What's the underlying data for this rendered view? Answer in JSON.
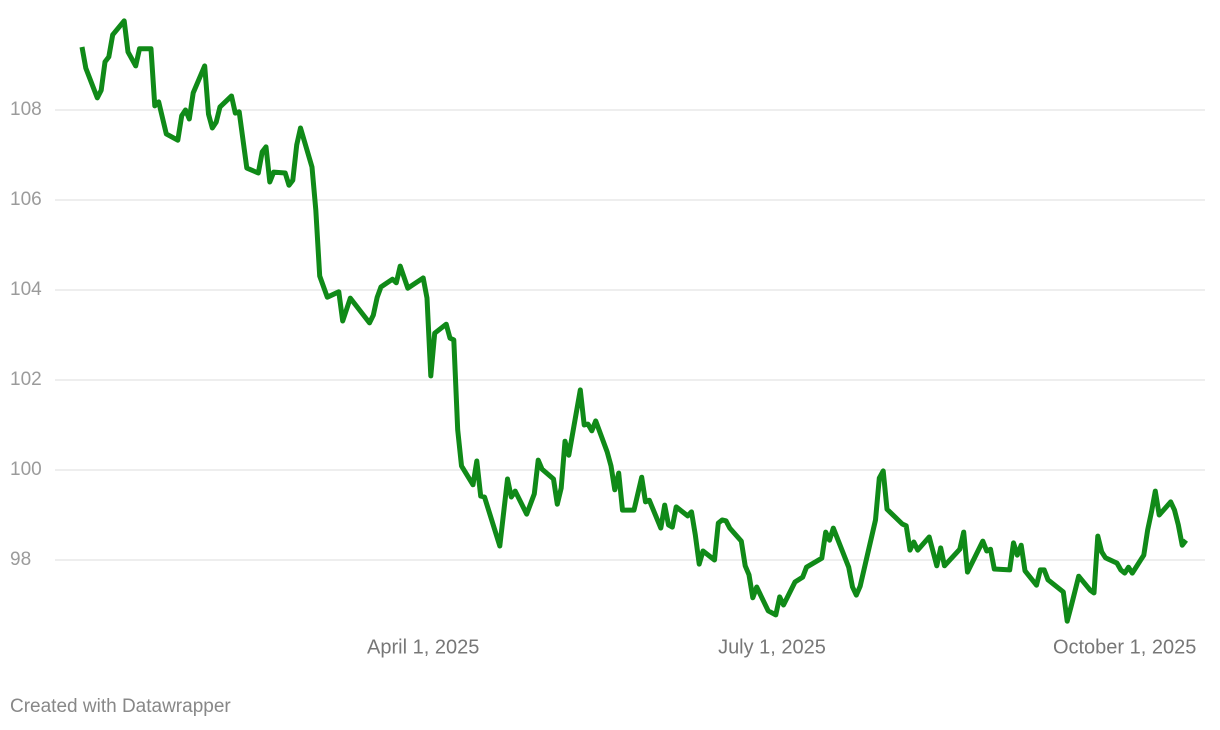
{
  "chart_data": {
    "type": "line",
    "color": "#108a18",
    "grid": true,
    "x": [
      "2025-01-02",
      "2025-01-03",
      "2025-01-06",
      "2025-01-07",
      "2025-01-08",
      "2025-01-09",
      "2025-01-10",
      "2025-01-13",
      "2025-01-14",
      "2025-01-16",
      "2025-01-17",
      "2025-01-20",
      "2025-01-21",
      "2025-01-22",
      "2025-01-24",
      "2025-01-27",
      "2025-01-28",
      "2025-01-29",
      "2025-01-30",
      "2025-01-31",
      "2025-02-03",
      "2025-02-04",
      "2025-02-05",
      "2025-02-06",
      "2025-02-07",
      "2025-02-10",
      "2025-02-11",
      "2025-02-12",
      "2025-02-14",
      "2025-02-17",
      "2025-02-18",
      "2025-02-19",
      "2025-02-20",
      "2025-02-21",
      "2025-02-24",
      "2025-02-25",
      "2025-02-26",
      "2025-02-27",
      "2025-02-28",
      "2025-03-03",
      "2025-03-04",
      "2025-03-05",
      "2025-03-07",
      "2025-03-10",
      "2025-03-11",
      "2025-03-13",
      "2025-03-18",
      "2025-03-19",
      "2025-03-20",
      "2025-03-21",
      "2025-03-24",
      "2025-03-25",
      "2025-03-26",
      "2025-03-28",
      "2025-04-01",
      "2025-04-02",
      "2025-04-03",
      "2025-04-04",
      "2025-04-07",
      "2025-04-08",
      "2025-04-09",
      "2025-04-10",
      "2025-04-11",
      "2025-04-14",
      "2025-04-15",
      "2025-04-16",
      "2025-04-17",
      "2025-04-21",
      "2025-04-23",
      "2025-04-24",
      "2025-04-25",
      "2025-04-28",
      "2025-04-30",
      "2025-05-01",
      "2025-05-02",
      "2025-05-05",
      "2025-05-06",
      "2025-05-07",
      "2025-05-08",
      "2025-05-09",
      "2025-05-12",
      "2025-05-13",
      "2025-05-14",
      "2025-05-15",
      "2025-05-16",
      "2025-05-19",
      "2025-05-20",
      "2025-05-21",
      "2025-05-22",
      "2025-05-23",
      "2025-05-26",
      "2025-05-28",
      "2025-05-29",
      "2025-05-30",
      "2025-06-02",
      "2025-06-03",
      "2025-06-04",
      "2025-06-05",
      "2025-06-06",
      "2025-06-09",
      "2025-06-10",
      "2025-06-11",
      "2025-06-12",
      "2025-06-13",
      "2025-06-16",
      "2025-06-17",
      "2025-06-18",
      "2025-06-19",
      "2025-06-20",
      "2025-06-23",
      "2025-06-24",
      "2025-06-25",
      "2025-06-26",
      "2025-06-27",
      "2025-06-30",
      "2025-07-02",
      "2025-07-03",
      "2025-07-04",
      "2025-07-07",
      "2025-07-09",
      "2025-07-10",
      "2025-07-14",
      "2025-07-15",
      "2025-07-16",
      "2025-07-17",
      "2025-07-21",
      "2025-07-22",
      "2025-07-23",
      "2025-07-24",
      "2025-07-28",
      "2025-07-29",
      "2025-07-30",
      "2025-07-31",
      "2025-08-04",
      "2025-08-05",
      "2025-08-06",
      "2025-08-07",
      "2025-08-08",
      "2025-08-11",
      "2025-08-13",
      "2025-08-14",
      "2025-08-15",
      "2025-08-19",
      "2025-08-20",
      "2025-08-21",
      "2025-08-25",
      "2025-08-26",
      "2025-08-27",
      "2025-08-28",
      "2025-09-01",
      "2025-09-02",
      "2025-09-03",
      "2025-09-04",
      "2025-09-05",
      "2025-09-08",
      "2025-09-09",
      "2025-09-10",
      "2025-09-11",
      "2025-09-15",
      "2025-09-16",
      "2025-09-17",
      "2025-09-18",
      "2025-09-19",
      "2025-09-22",
      "2025-09-23",
      "2025-09-24",
      "2025-09-25",
      "2025-09-26",
      "2025-09-29",
      "2025-09-30",
      "2025-10-01",
      "2025-10-02",
      "2025-10-03",
      "2025-10-06",
      "2025-10-07",
      "2025-10-08",
      "2025-10-09",
      "2025-10-10",
      "2025-10-13",
      "2025-10-14",
      "2025-10-15",
      "2025-10-16",
      "2025-10-17"
    ],
    "values": [
      109.4,
      108.93,
      108.27,
      108.44,
      109.07,
      109.18,
      109.67,
      109.98,
      109.29,
      108.98,
      109.36,
      109.36,
      108.09,
      108.18,
      107.47,
      107.33,
      107.87,
      108.0,
      107.8,
      108.38,
      108.98,
      107.91,
      107.6,
      107.73,
      108.07,
      108.31,
      107.93,
      107.96,
      106.71,
      106.6,
      107.07,
      107.18,
      106.4,
      106.62,
      106.6,
      106.33,
      106.44,
      107.22,
      107.6,
      106.73,
      105.78,
      104.31,
      103.84,
      103.96,
      103.31,
      103.82,
      103.27,
      103.44,
      103.84,
      104.07,
      104.24,
      104.16,
      104.53,
      104.04,
      104.27,
      103.82,
      102.09,
      103.04,
      103.24,
      102.93,
      102.89,
      100.89,
      100.09,
      99.67,
      100.2,
      99.42,
      99.4,
      98.31,
      99.8,
      99.4,
      99.53,
      99.02,
      99.47,
      100.22,
      100.02,
      99.8,
      99.24,
      99.6,
      100.64,
      100.33,
      101.78,
      101.0,
      101.02,
      100.87,
      101.09,
      100.4,
      100.09,
      99.56,
      99.93,
      99.11,
      99.11,
      99.84,
      99.29,
      99.33,
      98.71,
      99.22,
      98.78,
      98.73,
      99.18,
      98.98,
      99.07,
      98.56,
      97.91,
      98.2,
      98.0,
      98.82,
      98.89,
      98.87,
      98.71,
      98.42,
      97.87,
      97.67,
      97.16,
      97.4,
      96.87,
      96.78,
      97.18,
      97.0,
      97.51,
      97.62,
      97.84,
      98.04,
      98.62,
      98.44,
      98.71,
      97.84,
      97.4,
      97.22,
      97.42,
      98.89,
      99.82,
      99.98,
      99.13,
      98.8,
      98.76,
      98.22,
      98.4,
      98.22,
      98.51,
      97.87,
      98.27,
      97.87,
      98.24,
      98.62,
      97.73,
      98.42,
      98.2,
      98.24,
      97.8,
      97.78,
      98.38,
      98.11,
      98.33,
      97.76,
      97.44,
      97.78,
      97.78,
      97.56,
      97.29,
      96.64,
      96.96,
      97.29,
      97.64,
      97.33,
      97.27,
      98.53,
      98.18,
      98.05,
      97.93,
      97.78,
      97.71,
      97.84,
      97.71,
      98.11,
      98.67,
      99.07,
      99.53,
      99.0,
      99.29,
      99.11,
      98.78,
      98.33,
      98.44
    ],
    "xlim": [
      "2025-01-02",
      "2025-10-17"
    ],
    "xticks": [
      {
        "value": "2025-04-01",
        "label": "April 1, 2025"
      },
      {
        "value": "2025-07-01",
        "label": "July 1, 2025"
      },
      {
        "value": "2025-10-01",
        "label": "October 1, 2025"
      }
    ],
    "ylim": [
      96,
      110
    ],
    "yticks": [
      98,
      100,
      102,
      104,
      106,
      108
    ],
    "credit": "Created with Datawrapper"
  }
}
